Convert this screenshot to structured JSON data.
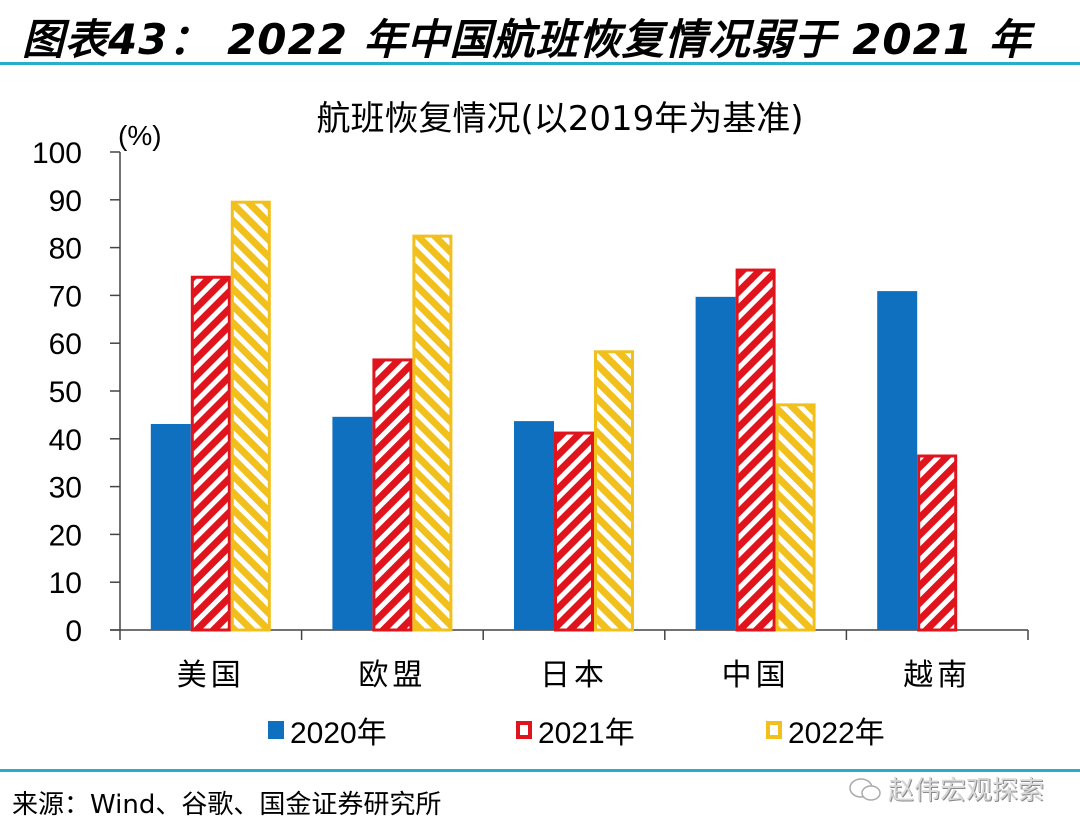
{
  "figure": {
    "title": "图表43：  2022 年中国航班恢复情况弱于 2021 年",
    "source": "来源：Wind、谷歌、国金证券研究所",
    "watermark": "赵伟宏观探索"
  },
  "colors": {
    "rule": "#2aaec8",
    "s2020": "#1070c0",
    "s2021": "#e0141c",
    "s2022": "#f2c01c"
  },
  "chart_data": {
    "type": "bar",
    "title": "航班恢复情况(以2019年为基准)",
    "ylabel": "(%)",
    "xlabel": "",
    "ylim": [
      0,
      100
    ],
    "yticks": [
      0,
      10,
      20,
      30,
      40,
      50,
      60,
      70,
      80,
      90,
      100
    ],
    "grid": false,
    "legend_position": "bottom",
    "categories": [
      "美国",
      "欧盟",
      "日本",
      "中国",
      "越南"
    ],
    "series": [
      {
        "name": "2020年",
        "pattern": "solid",
        "values": [
          43.1,
          44.6,
          43.7,
          69.7,
          70.9
        ]
      },
      {
        "name": "2021年",
        "pattern": "hatch",
        "values": [
          73.8,
          56.5,
          41.2,
          75.3,
          36.4
        ]
      },
      {
        "name": "2022年",
        "pattern": "hatch",
        "values": [
          89.5,
          82.4,
          58.2,
          47.1,
          null
        ]
      }
    ]
  }
}
